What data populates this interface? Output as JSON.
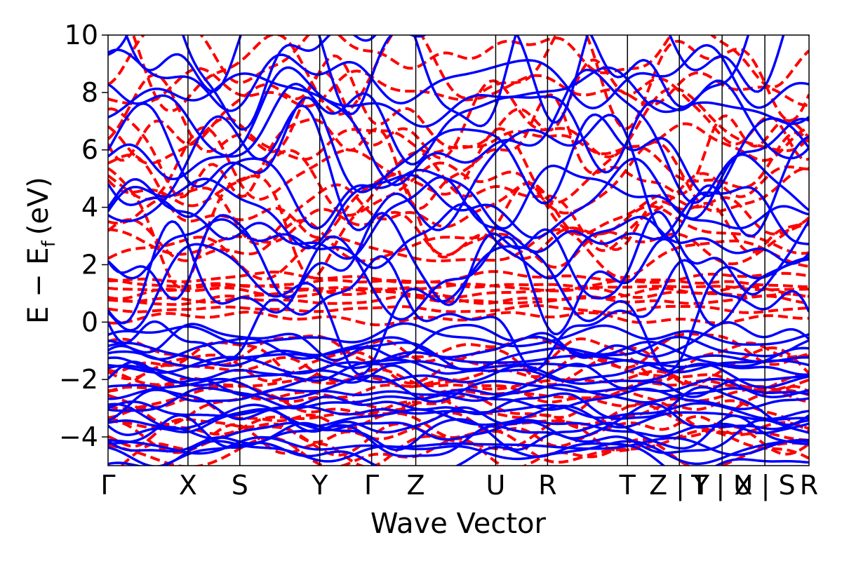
{
  "chart_data": {
    "type": "line",
    "xlabel": "Wave Vector",
    "ylabel_main": "E − E",
    "ylabel_sub": "f",
    "ylabel_unit": "(eV)",
    "ylim": [
      -5,
      10
    ],
    "yticks": [
      -4,
      -2,
      0,
      2,
      4,
      6,
      8,
      10
    ],
    "ytick_labels": [
      "−4",
      "−2",
      "0",
      "2",
      "4",
      "6",
      "8",
      "10"
    ],
    "kpath": [
      {
        "pos": 0.0,
        "label": "Γ"
      },
      {
        "pos": 0.114,
        "label": "X"
      },
      {
        "pos": 0.188,
        "label": "S"
      },
      {
        "pos": 0.302,
        "label": "Y"
      },
      {
        "pos": 0.376,
        "label": "Γ"
      },
      {
        "pos": 0.439,
        "label": "Z"
      },
      {
        "pos": 0.553,
        "label": "U"
      },
      {
        "pos": 0.627,
        "label": "R"
      },
      {
        "pos": 0.741,
        "label": "T"
      },
      {
        "pos": 0.815,
        "label": "Z | Y"
      },
      {
        "pos": 0.876,
        "label": "T | U"
      },
      {
        "pos": 0.937,
        "label": "X | S"
      },
      {
        "pos": 1.0,
        "label": "R"
      }
    ],
    "series": [
      {
        "style": "solid",
        "color": "#0000ff"
      },
      {
        "style": "dashed",
        "color": "#ff0000"
      }
    ],
    "grid": false
  }
}
